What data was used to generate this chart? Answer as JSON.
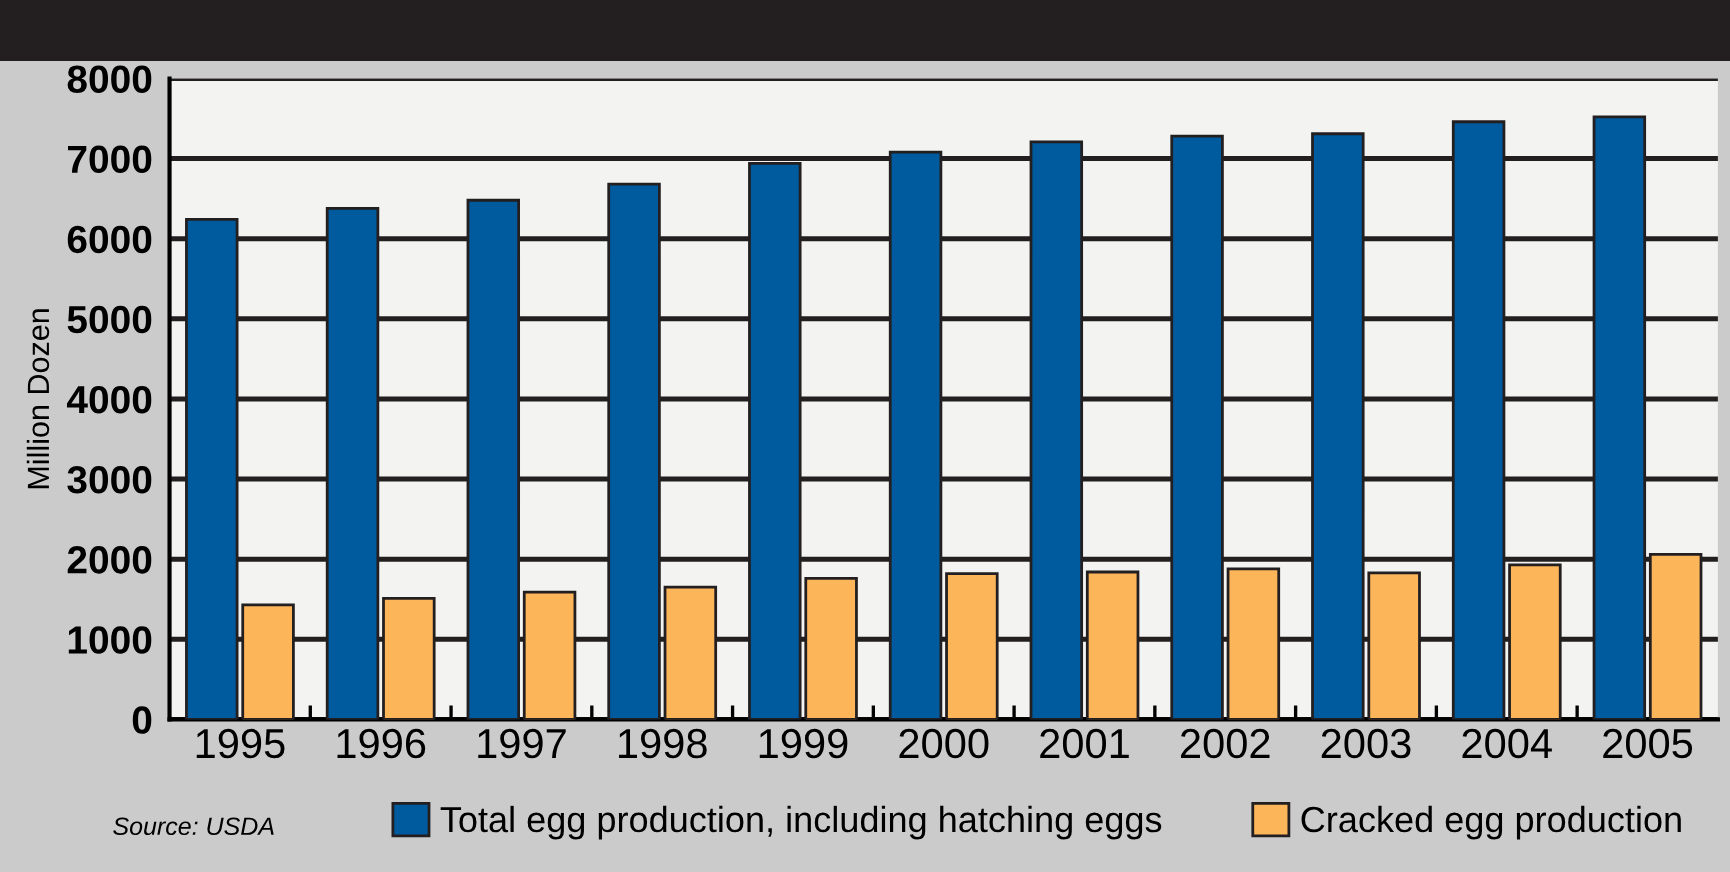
{
  "chart_data": {
    "type": "bar",
    "ylabel": "Million Dozen",
    "categories": [
      "1995",
      "1996",
      "1997",
      "1998",
      "1999",
      "2000",
      "2001",
      "2002",
      "2003",
      "2004",
      "2005"
    ],
    "series": [
      {
        "name": "Total egg production, including hatching eggs",
        "color": "#005a9e",
        "values": [
          6240,
          6380,
          6480,
          6680,
          6940,
          7080,
          7210,
          7280,
          7310,
          7460,
          7520
        ]
      },
      {
        "name": "Cracked egg production",
        "color": "#fdb55a",
        "values": [
          1430,
          1510,
          1590,
          1650,
          1760,
          1820,
          1840,
          1880,
          1830,
          1930,
          2060
        ]
      }
    ],
    "ylim": [
      0,
      8000
    ],
    "yticks": [
      0,
      1000,
      2000,
      3000,
      4000,
      5000,
      6000,
      7000,
      8000
    ],
    "grid": "y",
    "legend": "bottom",
    "annotations": [
      "Source: USDA"
    ]
  }
}
